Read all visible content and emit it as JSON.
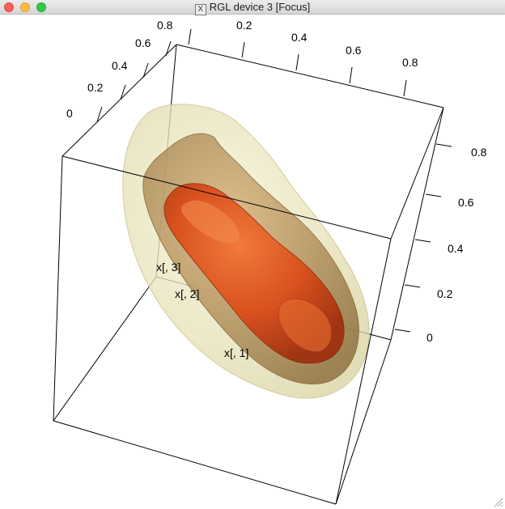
{
  "window": {
    "title": "RGL device 3 [Focus]",
    "icon": "x11-icon",
    "controls": [
      "close",
      "minimize",
      "zoom"
    ]
  },
  "plot": {
    "axis_labels": {
      "x1": "x[, 1]",
      "x2": "x[, 2]",
      "x3": "x[, 3]"
    },
    "left_ticks": [
      "0",
      "0.2",
      "0.4",
      "0.6",
      "0.8"
    ],
    "top_ticks": [
      "0.2",
      "0.4",
      "0.6",
      "0.8"
    ],
    "right_ticks": [
      "0",
      "0.2",
      "0.4",
      "0.6",
      "0.8"
    ],
    "surface_colors": {
      "outer": "#f2efc9",
      "middle": "#c7ac72",
      "inner": "#d0501f"
    }
  }
}
